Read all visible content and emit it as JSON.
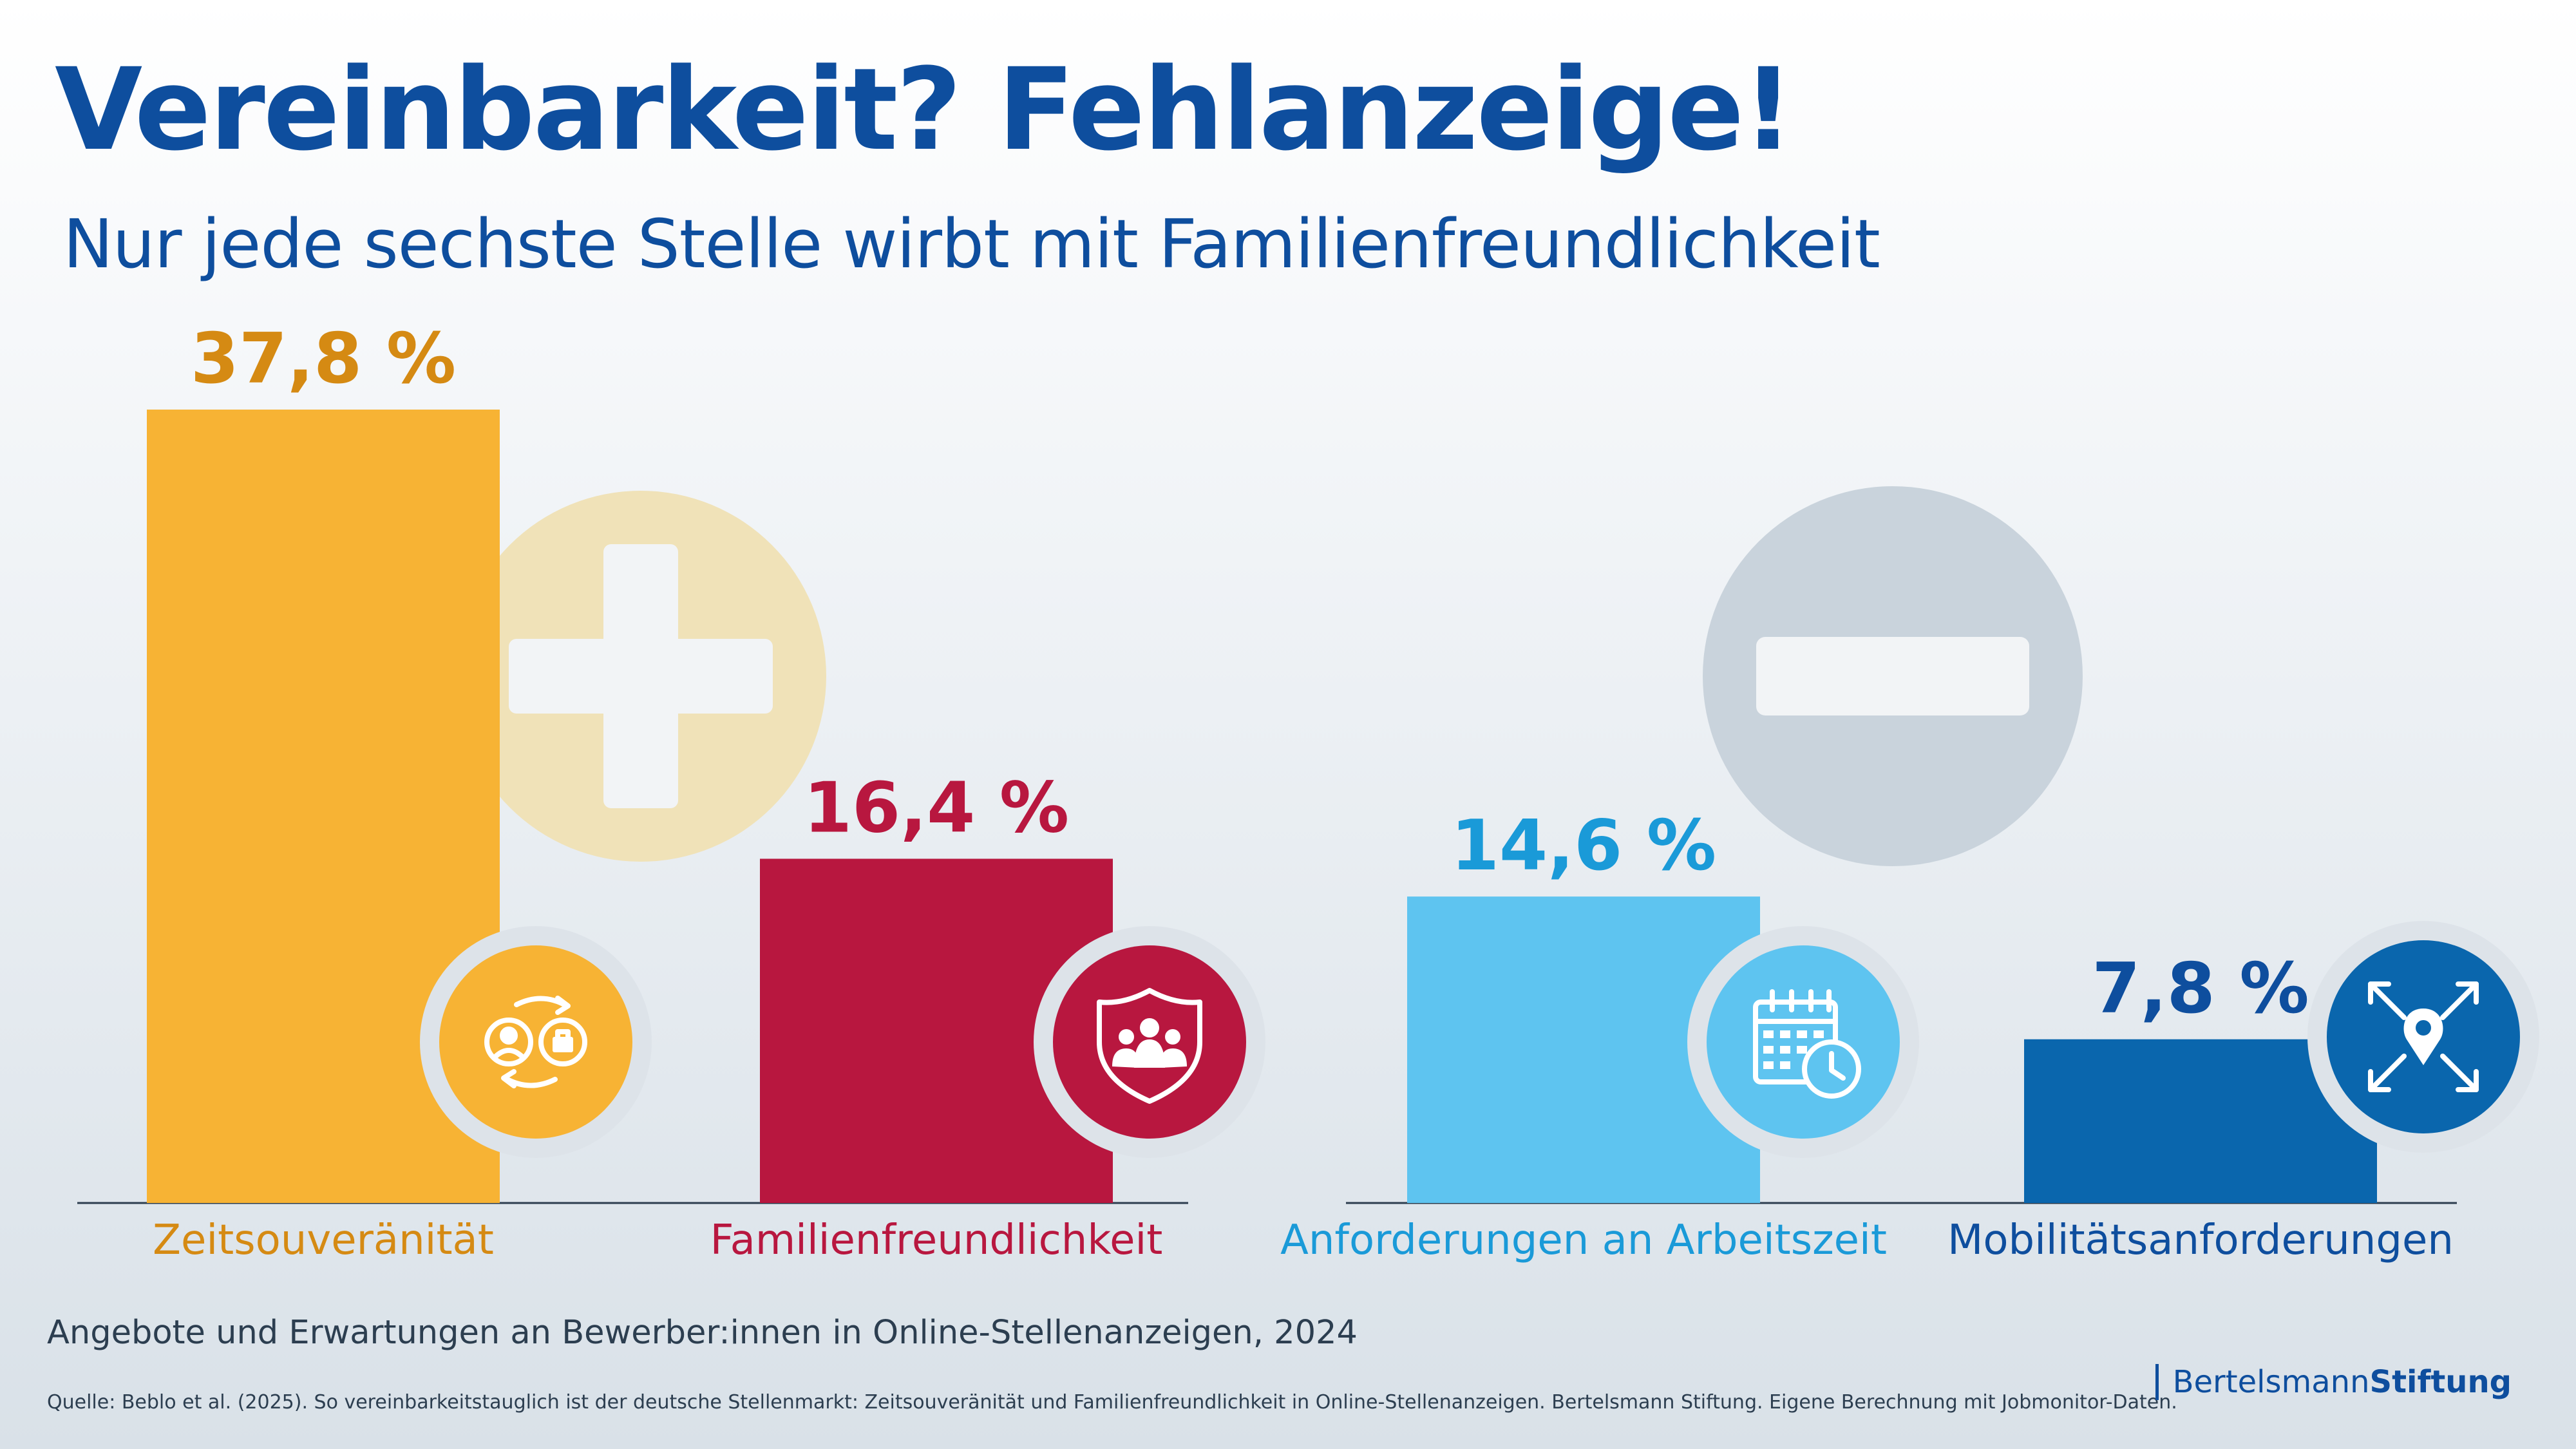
{
  "title": "Vereinbarkeit? Fehlanzeige!",
  "subtitle": "Nur jede sechste Stelle wirbt mit Familienfreundlichkeit",
  "caption": "Angebote und Erwartungen an Bewerber:innen in Online-Stellenanzeigen, 2024",
  "source": "Quelle: Beblo et al. (2025). So vereinbarkeitstauglich ist der deutsche Stellenmarkt: Zeitsouveränität und Familienfreundlichkeit in Online-Stellenanzeigen. Bertelsmann Stiftung. Eigene Berechnung mit Jobmonitor-Daten.",
  "logo": {
    "part1": "Bertelsmann",
    "part2": "Stiftung"
  },
  "chart_data": {
    "type": "bar",
    "unit": "%",
    "ylim": [
      0,
      40
    ],
    "grid": false,
    "groups": [
      {
        "symbol": "plus-icon",
        "color": "#f0e2b8",
        "categories": [
          "Zeitsouveränität",
          "Familienfreundlichkeit"
        ]
      },
      {
        "symbol": "minus-icon",
        "color": "#c9d3dc",
        "categories": [
          "Anforderungen an Arbeitszeit",
          "Mobilitätsanforderungen"
        ]
      }
    ],
    "categories": [
      "Zeitsouveränität",
      "Familienfreundlichkeit",
      "Anforderungen an Arbeitszeit",
      "Mobilitätsanforderungen"
    ],
    "values": [
      37.8,
      16.4,
      14.6,
      7.8
    ],
    "value_labels": [
      "37,8 %",
      "16,4 %",
      "14,6 %",
      "7,8 %"
    ],
    "colors": [
      "#f7b334",
      "#b8173f",
      "#5ec4f0",
      "#0a66ad"
    ],
    "label_colors": [
      "#d58a13",
      "#b8173f",
      "#1a9ad8",
      "#0e4e9e"
    ],
    "icons": [
      "role-swap-icon",
      "family-shield-icon",
      "calendar-clock-icon",
      "location-expand-icon"
    ]
  }
}
